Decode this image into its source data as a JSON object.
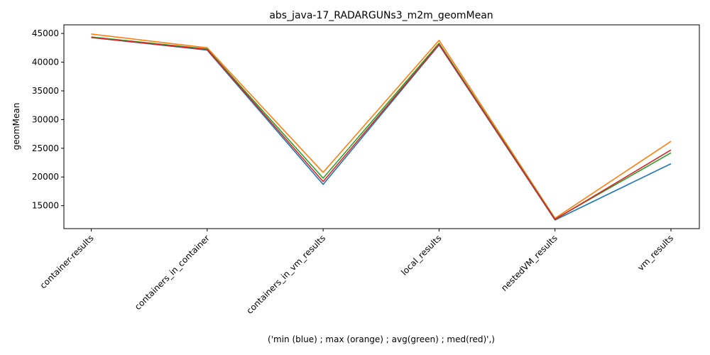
{
  "chart_data": {
    "type": "line",
    "title": "abs_java-17_RADARGUNs3_m2m_geomMean",
    "xlabel": "('min (blue) ; max (orange) ; avg(green) ; med(red)',)",
    "ylabel": "geomMean",
    "categories": [
      "container-results",
      "containers_in_container",
      "containers_in_vm_results",
      "local_results",
      "nestedVM_results",
      "vm_results"
    ],
    "ylim": [
      11000,
      46500
    ],
    "yticks": [
      15000,
      20000,
      25000,
      30000,
      35000,
      40000,
      45000
    ],
    "grid": false,
    "series": [
      {
        "color": "#1f77b4",
        "values": [
          44300,
          42100,
          18700,
          43000,
          12500,
          22300
        ]
      },
      {
        "color": "#ff7f0e",
        "values": [
          44900,
          42500,
          20800,
          43800,
          12800,
          26200
        ]
      },
      {
        "color": "#2ca02c",
        "values": [
          44400,
          42300,
          19800,
          43300,
          12650,
          24200
        ]
      },
      {
        "color": "#d62728",
        "values": [
          44300,
          42200,
          19200,
          43100,
          12600,
          24700
        ]
      }
    ]
  }
}
